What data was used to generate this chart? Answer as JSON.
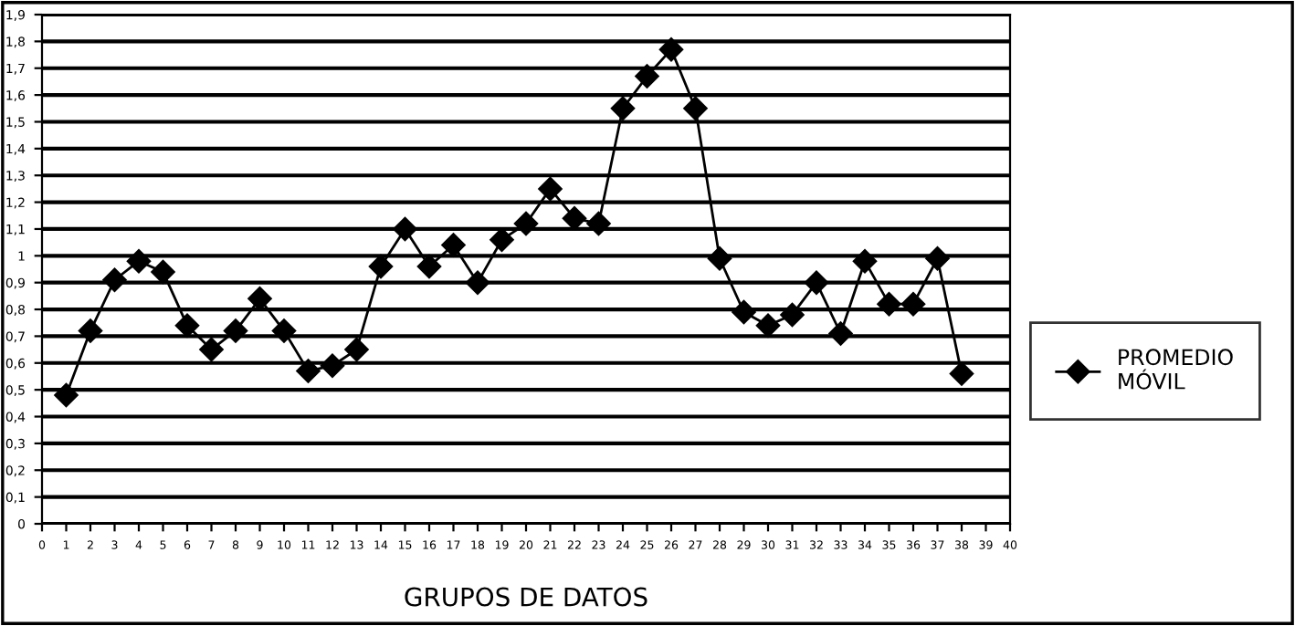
{
  "chart_data": {
    "type": "line",
    "xlabel": "GRUPOS DE DATOS",
    "x": [
      1,
      2,
      3,
      4,
      5,
      6,
      7,
      8,
      9,
      10,
      11,
      12,
      13,
      14,
      15,
      16,
      17,
      18,
      19,
      20,
      21,
      22,
      23,
      24,
      25,
      26,
      27,
      28,
      29,
      30,
      31,
      32,
      33,
      34,
      35,
      36,
      37,
      38
    ],
    "series": [
      {
        "name": "PROMEDIO MÓVIL",
        "color": "#000000",
        "values": [
          0.48,
          0.72,
          0.91,
          0.98,
          0.94,
          0.74,
          0.65,
          0.72,
          0.84,
          0.72,
          0.57,
          0.59,
          0.65,
          0.96,
          1.1,
          0.96,
          1.04,
          0.9,
          1.06,
          1.12,
          1.25,
          1.14,
          1.12,
          1.55,
          1.67,
          1.77,
          1.55,
          0.99,
          0.79,
          0.74,
          0.78,
          0.9,
          0.71,
          0.98,
          0.82,
          0.82,
          0.99,
          0.56
        ]
      }
    ],
    "xlim": [
      0,
      40
    ],
    "xticks": [
      0,
      1,
      2,
      3,
      4,
      5,
      6,
      7,
      8,
      9,
      10,
      11,
      12,
      13,
      14,
      15,
      16,
      17,
      18,
      19,
      20,
      21,
      22,
      23,
      24,
      25,
      26,
      27,
      28,
      29,
      30,
      31,
      32,
      33,
      34,
      35,
      36,
      37,
      38,
      39,
      40
    ],
    "ylim": [
      0,
      1.9
    ],
    "yticks": [
      0,
      {
        "value": 0.1,
        "label": "0,1"
      },
      {
        "value": 0.2,
        "label": "0,2"
      },
      {
        "value": 0.3,
        "label": "0,3"
      },
      {
        "value": 0.4,
        "label": "0,4"
      },
      {
        "value": 0.5,
        "label": "0,5"
      },
      {
        "value": 0.6,
        "label": "0,6"
      },
      {
        "value": 0.7,
        "label": "0,7"
      },
      {
        "value": 0.8,
        "label": "0,8"
      },
      {
        "value": 0.9,
        "label": "0,9"
      },
      1,
      {
        "value": 1.1,
        "label": "1,1"
      },
      {
        "value": 1.2,
        "label": "1,2"
      },
      {
        "value": 1.3,
        "label": "1,3"
      },
      {
        "value": 1.4,
        "label": "1,4"
      },
      {
        "value": 1.5,
        "label": "1,5"
      },
      {
        "value": 1.6,
        "label": "1,6"
      },
      {
        "value": 1.7,
        "label": "1,7"
      },
      {
        "value": 1.8,
        "label": "1,8"
      },
      {
        "value": 1.9,
        "label": "1,9"
      }
    ],
    "grid": "y",
    "legend": "right",
    "marker": "diamond",
    "line_style": "solid"
  }
}
